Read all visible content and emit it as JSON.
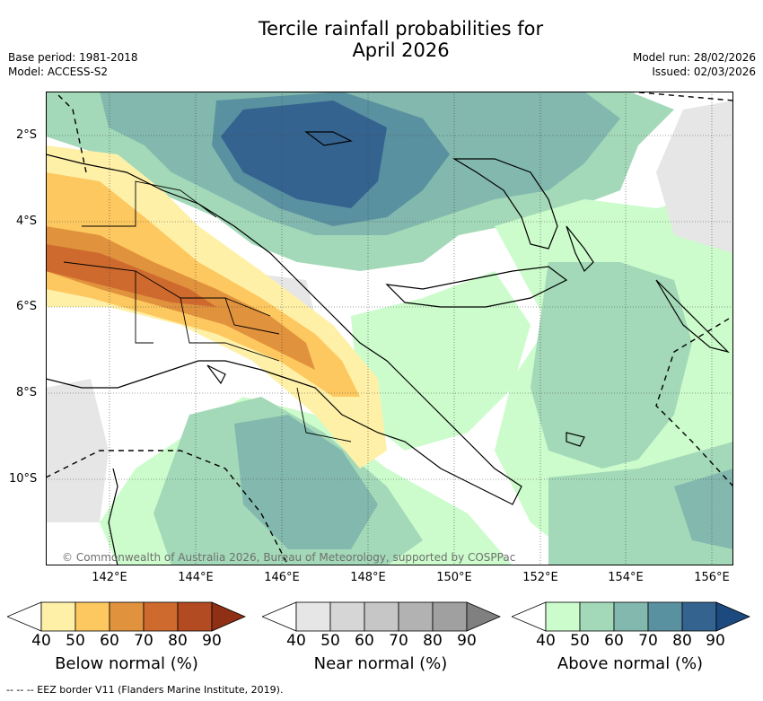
{
  "title": "Tercile rainfall probabilities for April 2026",
  "title_line1": "Tercile rainfall probabilities for",
  "title_line2": "April 2026",
  "base_period": "Base period: 1981-2018",
  "model": "Model: ACCESS-S2",
  "model_run": "Model run: 28/02/2026",
  "issued": "Issued: 02/03/2026",
  "copyright": "© Commonwealth of Australia 2026, Bureau of Meteorology, supported by COSPPac",
  "eez_legend": "--  --  -- EEZ border V11 (Flanders Marine Institute, 2019).",
  "map": {
    "lat_labels": [
      "2°S",
      "4°S",
      "6°S",
      "8°S",
      "10°S"
    ],
    "lon_labels": [
      "142°E",
      "144°E",
      "146°E",
      "148°E",
      "150°E",
      "152°E",
      "154°E",
      "156°E"
    ]
  },
  "colorbars": [
    {
      "label": "Below normal (%)",
      "ticks": [
        "40",
        "50",
        "60",
        "70",
        "80",
        "90"
      ],
      "colors": [
        "#fff0a8",
        "#fdc85f",
        "#e0923d",
        "#cf6a2e",
        "#b24a22",
        "#8f2f14"
      ]
    },
    {
      "label": "Near normal (%)",
      "ticks": [
        "40",
        "50",
        "60",
        "70",
        "80",
        "90"
      ],
      "colors": [
        "#e6e6e6",
        "#d6d6d6",
        "#c6c6c6",
        "#b2b2b2",
        "#a0a0a0",
        "#808080"
      ]
    },
    {
      "label": "Above normal (%)",
      "ticks": [
        "40",
        "50",
        "60",
        "70",
        "80",
        "90"
      ],
      "colors": [
        "#ccfccc",
        "#a3d9b8",
        "#82b8ad",
        "#5a91a0",
        "#34638f",
        "#1c4a7e"
      ]
    }
  ]
}
